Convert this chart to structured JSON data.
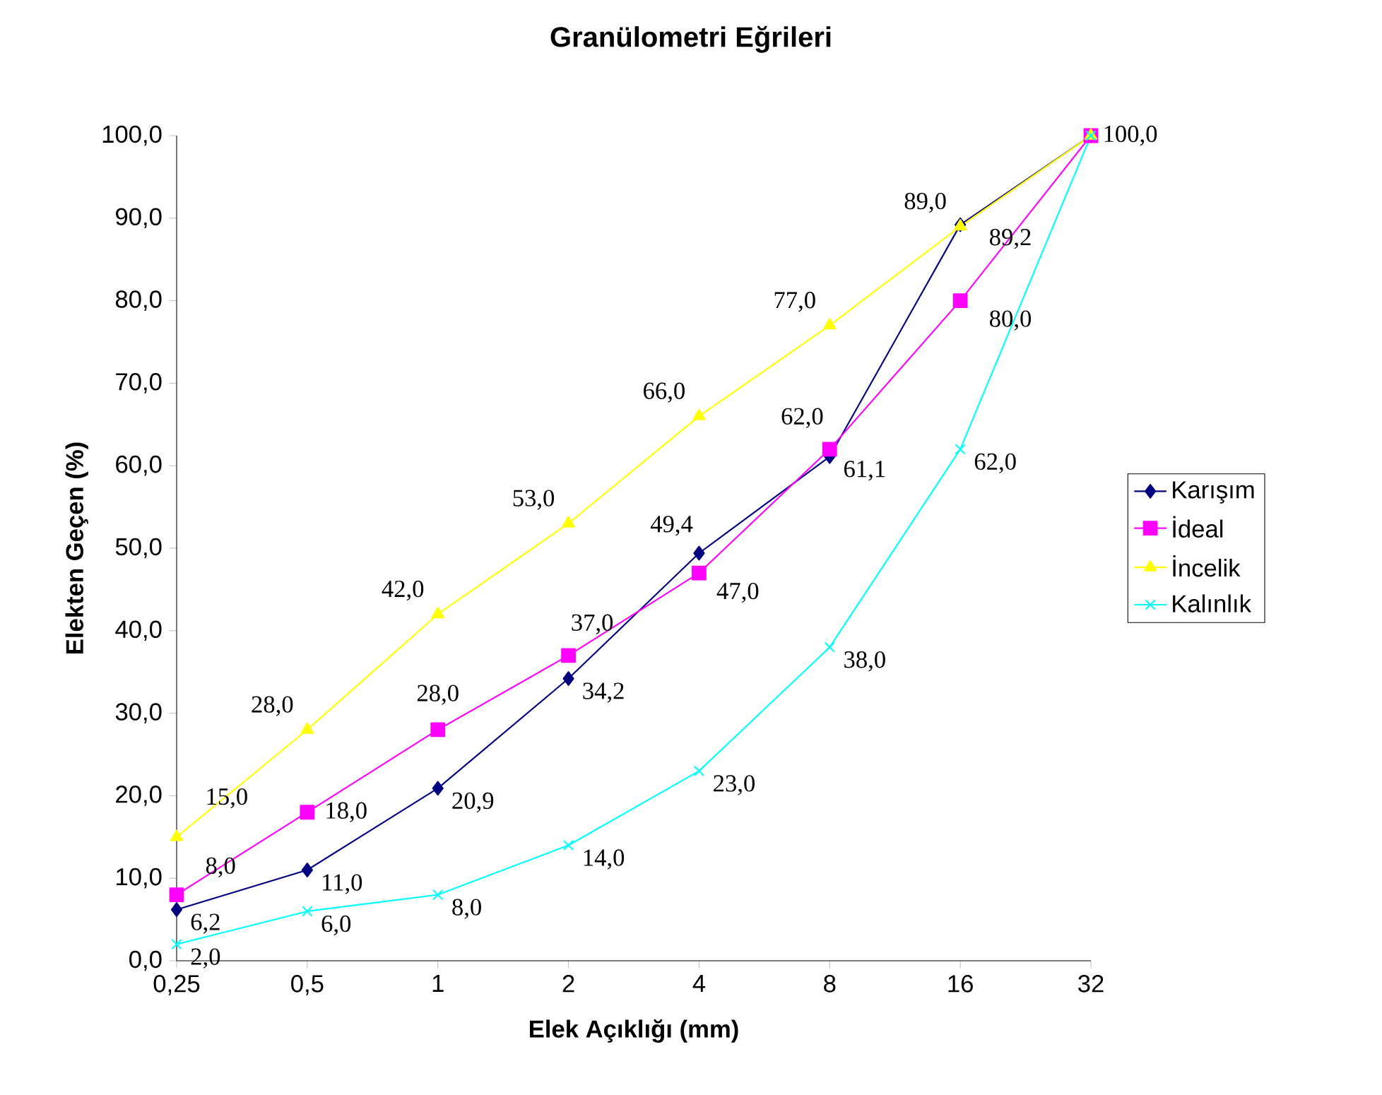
{
  "chart_data": {
    "type": "line",
    "title": "Granülometri Eğrileri",
    "xlabel": "Elek Açıklığı (mm)",
    "ylabel": "Elekten Geçen (%)",
    "categories": [
      "0,25",
      "0,5",
      "1",
      "2",
      "4",
      "8",
      "16",
      "32"
    ],
    "ylim": [
      0,
      100
    ],
    "yticks": [
      {
        "value": 0,
        "label": "0,0"
      },
      {
        "value": 10,
        "label": "10,0"
      },
      {
        "value": 20,
        "label": "20,0"
      },
      {
        "value": 30,
        "label": "30,0"
      },
      {
        "value": 40,
        "label": "40,0"
      },
      {
        "value": 50,
        "label": "50,0"
      },
      {
        "value": 60,
        "label": "60,0"
      },
      {
        "value": 70,
        "label": "70,0"
      },
      {
        "value": 80,
        "label": "80,0"
      },
      {
        "value": 90,
        "label": "90,0"
      },
      {
        "value": 100,
        "label": "100,0"
      }
    ],
    "legend": "right",
    "line_style": "solid",
    "series": [
      {
        "name": "Karışım",
        "color": "#000080",
        "marker": "diamond",
        "values": [
          6.2,
          11.0,
          20.9,
          34.2,
          49.4,
          61.1,
          89.2,
          100.0
        ],
        "value_labels": [
          "6,2",
          "11,0",
          "20,9",
          "34,2",
          "49,4",
          "61,1",
          "89,2",
          "100,0"
        ]
      },
      {
        "name": "İdeal",
        "color": "#ff00ff",
        "marker": "square",
        "values": [
          8,
          18,
          28,
          37,
          47,
          62,
          80,
          100
        ],
        "value_labels": [
          "8,0",
          "18,0",
          "28,0",
          "37,0",
          "47,0",
          "62,0",
          "80,0",
          null
        ]
      },
      {
        "name": "İncelik",
        "color": "#ffff00",
        "marker": "triangle",
        "values": [
          15,
          28,
          42,
          53,
          66,
          77,
          89,
          100
        ],
        "value_labels": [
          "15,0",
          "28,0",
          "42,0",
          "53,0",
          "66,0",
          "77,0",
          "89,0",
          null
        ]
      },
      {
        "name": "Kalınlık",
        "color": "#00ffff",
        "marker": "cross",
        "values": [
          2,
          6,
          8,
          14,
          23,
          38,
          62,
          100
        ],
        "value_labels": [
          "2,0",
          "6,0",
          "8,0",
          "14,0",
          "23,0",
          "38,0",
          "62,0",
          null
        ]
      }
    ]
  }
}
